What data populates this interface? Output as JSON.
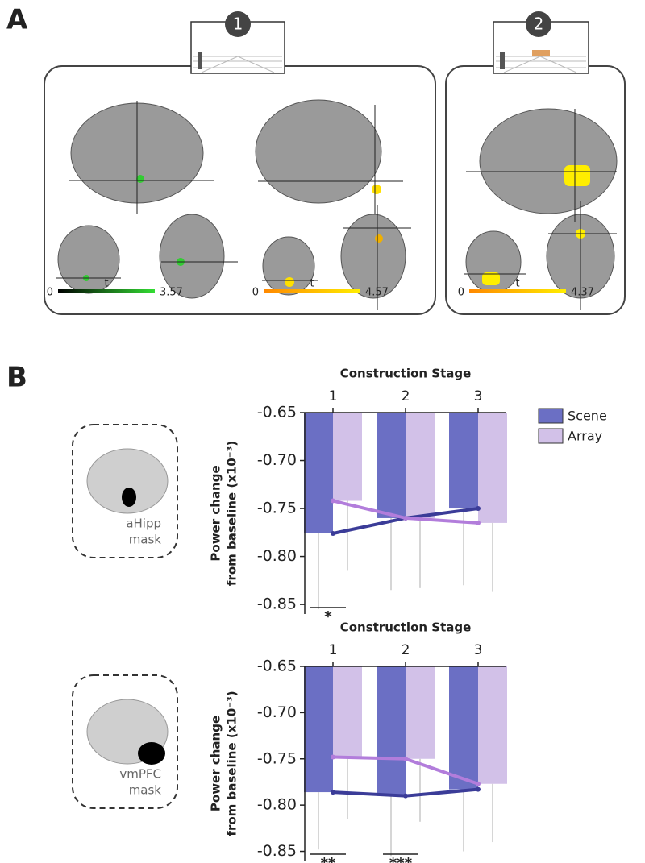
{
  "panel_labels": [
    "A",
    "B"
  ],
  "panel_a": {
    "stages": [
      "1",
      "2"
    ],
    "colorbars": [
      {
        "min": 0,
        "label": "t",
        "max": 3.57
      },
      {
        "min": 0,
        "label": "t",
        "max": 4.57
      },
      {
        "min": 0,
        "label": "t",
        "max": 4.37
      }
    ]
  },
  "chart_data": [
    {
      "type": "bar",
      "x_label": "Construction Stage",
      "y_label": [
        "Power change",
        "from baseline (x10⁻³)"
      ],
      "categories": [
        "1",
        "2",
        "3"
      ],
      "mask": [
        "aHipp",
        "mask"
      ],
      "series": [
        {
          "name": "Scene",
          "color": "#6b6fc4",
          "line_color": "#3b3c98",
          "values": [
            -0.776,
            -0.76,
            -0.75
          ],
          "errors": [
            0.079,
            0.075,
            0.08
          ]
        },
        {
          "name": "Array",
          "color": "#d2c1e8",
          "line_color": "#b27ddb",
          "values": [
            -0.742,
            -0.76,
            -0.765
          ],
          "errors": [
            0.073,
            0.073,
            0.072
          ]
        }
      ],
      "ylim": [
        -0.86,
        -0.65
      ],
      "yticks": [
        -0.65,
        {
          "value": -0.7,
          "label": "-0.70"
        },
        -0.75,
        {
          "value": -0.8,
          "label": "-0.80"
        },
        -0.85
      ],
      "annotations": [
        {
          "text": "*",
          "at": "1"
        }
      ],
      "legend": "right"
    },
    {
      "type": "bar",
      "x_label": "Construction Stage",
      "y_label": [
        "Power change",
        "from baseline (x10⁻³)"
      ],
      "categories": [
        "1",
        "2",
        "3"
      ],
      "mask": [
        "vmPFC",
        "mask"
      ],
      "series": [
        {
          "name": "Scene",
          "color": "#6b6fc4",
          "line_color": "#3b3c98",
          "values": [
            -0.786,
            -0.79,
            -0.783
          ],
          "errors": [
            0.062,
            0.065,
            0.067
          ]
        },
        {
          "name": "Array",
          "color": "#d2c1e8",
          "line_color": "#b27ddb",
          "values": [
            -0.748,
            -0.75,
            -0.777
          ],
          "errors": [
            0.067,
            0.068,
            0.063
          ]
        }
      ],
      "ylim": [
        -0.86,
        -0.65
      ],
      "yticks": [
        -0.65,
        {
          "value": -0.7,
          "label": "-0.70"
        },
        -0.75,
        {
          "value": -0.8,
          "label": "-0.80"
        },
        -0.85
      ],
      "annotations": [
        {
          "text": "**",
          "at": "1"
        },
        {
          "text": "***",
          "at": "2"
        }
      ]
    }
  ]
}
